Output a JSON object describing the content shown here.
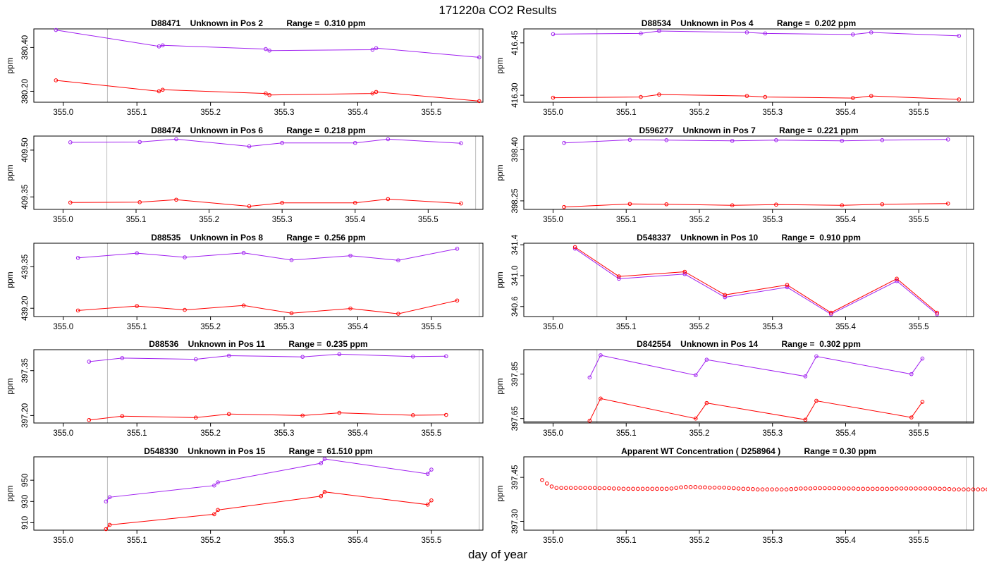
{
  "figure": {
    "title": "171220a  CO2 Results",
    "xlabel": "day of year"
  },
  "colors": {
    "purple": "#a020f0",
    "red": "#ff0000",
    "refline": "#bdbdbd"
  },
  "chart_data": [
    {
      "type": "line",
      "title": "D88471    Unknown in Pos 2          Range =  0.310 ppm",
      "ylabel": "ppm",
      "xlim": [
        354.96,
        355.57
      ],
      "ylim": [
        380.15,
        380.485
      ],
      "xticks": [
        355.0,
        355.1,
        355.2,
        355.3,
        355.4,
        355.5
      ],
      "xtick_labels": [
        "355.0",
        "355.1",
        "355.2",
        "355.3",
        "355.4",
        "355.5"
      ],
      "yticks": [
        380.2,
        380.4
      ],
      "ytick_labels": [
        "380.20",
        "380.40"
      ],
      "vlines": [
        355.06,
        355.565
      ],
      "series": [
        {
          "name": "upper",
          "color": "#a020f0",
          "x": [
            354.99,
            355.13,
            355.135,
            355.275,
            355.28,
            355.42,
            355.425,
            355.565
          ],
          "y": [
            380.48,
            380.405,
            380.41,
            380.393,
            380.386,
            380.39,
            380.397,
            380.355
          ]
        },
        {
          "name": "lower",
          "color": "#ff0000",
          "x": [
            354.99,
            355.13,
            355.135,
            355.275,
            355.28,
            355.42,
            355.425,
            355.565
          ],
          "y": [
            380.25,
            380.2,
            380.207,
            380.19,
            380.183,
            380.19,
            380.197,
            380.155
          ]
        }
      ]
    },
    {
      "type": "line",
      "title": "D88534    Unknown in Pos 4          Range =  0.202 ppm",
      "ylabel": "ppm",
      "xlim": [
        354.96,
        355.575
      ],
      "ylim": [
        416.28,
        416.49
      ],
      "xticks": [
        355.0,
        355.1,
        355.2,
        355.3,
        355.4,
        355.5
      ],
      "xtick_labels": [
        "355.0",
        "355.1",
        "355.2",
        "355.3",
        "355.4",
        "355.5"
      ],
      "yticks": [
        416.3,
        416.45
      ],
      "ytick_labels": [
        "416.30",
        "416.45"
      ],
      "vlines": [
        355.06,
        355.565
      ],
      "series": [
        {
          "name": "upper",
          "color": "#a020f0",
          "x": [
            355.0,
            355.12,
            355.145,
            355.265,
            355.29,
            355.41,
            355.435,
            355.555
          ],
          "y": [
            416.475,
            416.477,
            416.484,
            416.48,
            416.477,
            416.474,
            416.48,
            416.47
          ]
        },
        {
          "name": "lower",
          "color": "#ff0000",
          "x": [
            355.0,
            355.12,
            355.145,
            355.265,
            355.29,
            355.41,
            355.435,
            355.555
          ],
          "y": [
            416.293,
            416.295,
            416.302,
            416.298,
            416.295,
            416.292,
            416.298,
            416.288
          ]
        }
      ]
    },
    {
      "type": "line",
      "title": "D88474    Unknown in Pos 6          Range =  0.218 ppm",
      "ylabel": "ppm",
      "xlim": [
        354.96,
        355.575
      ],
      "ylim": [
        409.31,
        409.545
      ],
      "xticks": [
        355.0,
        355.1,
        355.2,
        355.3,
        355.4,
        355.5
      ],
      "xtick_labels": [
        "355.0",
        "355.1",
        "355.2",
        "355.3",
        "355.4",
        "355.5"
      ],
      "yticks": [
        409.35,
        409.5
      ],
      "ytick_labels": [
        "409.35",
        "409.50"
      ],
      "vlines": [
        355.06,
        355.565
      ],
      "series": [
        {
          "name": "upper",
          "color": "#a020f0",
          "x": [
            355.01,
            355.105,
            355.155,
            355.255,
            355.3,
            355.4,
            355.445,
            355.545
          ],
          "y": [
            409.525,
            409.526,
            409.535,
            409.512,
            409.523,
            409.523,
            409.535,
            409.522
          ]
        },
        {
          "name": "lower",
          "color": "#ff0000",
          "x": [
            355.01,
            355.105,
            355.155,
            355.255,
            355.3,
            355.4,
            355.445,
            355.545
          ],
          "y": [
            409.332,
            409.333,
            409.341,
            409.32,
            409.331,
            409.331,
            409.343,
            409.329
          ]
        }
      ]
    },
    {
      "type": "line",
      "title": "D596277    Unknown in Pos 7          Range =  0.221 ppm",
      "ylabel": "ppm",
      "xlim": [
        354.96,
        355.575
      ],
      "ylim": [
        398.225,
        398.44
      ],
      "xticks": [
        355.0,
        355.1,
        355.2,
        355.3,
        355.4,
        355.5
      ],
      "xtick_labels": [
        "355.0",
        "355.1",
        "355.2",
        "355.3",
        "355.4",
        "355.5"
      ],
      "yticks": [
        398.25,
        398.4
      ],
      "ytick_labels": [
        "398.25",
        "398.40"
      ],
      "vlines": [
        355.06,
        355.565
      ],
      "series": [
        {
          "name": "upper",
          "color": "#a020f0",
          "x": [
            355.015,
            355.105,
            355.155,
            355.245,
            355.305,
            355.395,
            355.45,
            355.54
          ],
          "y": [
            398.42,
            398.429,
            398.428,
            398.426,
            398.428,
            398.426,
            398.428,
            398.43
          ]
        },
        {
          "name": "lower",
          "color": "#ff0000",
          "x": [
            355.015,
            355.105,
            355.155,
            355.245,
            355.305,
            355.395,
            355.45,
            355.54
          ],
          "y": [
            398.232,
            398.241,
            398.24,
            398.237,
            398.239,
            398.237,
            398.24,
            398.242
          ]
        }
      ]
    },
    {
      "type": "line",
      "title": "D88535    Unknown in Pos 8          Range =  0.256 ppm",
      "ylabel": "ppm",
      "xlim": [
        354.96,
        355.57
      ],
      "ylim": [
        439.17,
        439.435
      ],
      "xticks": [
        355.0,
        355.1,
        355.2,
        355.3,
        355.4,
        355.5
      ],
      "xtick_labels": [
        "355.0",
        "355.1",
        "355.2",
        "355.3",
        "355.4",
        "355.5"
      ],
      "yticks": [
        439.2,
        439.35
      ],
      "ytick_labels": [
        "439.20",
        "439.35"
      ],
      "vlines": [
        355.06,
        355.565
      ],
      "series": [
        {
          "name": "upper",
          "color": "#a020f0",
          "x": [
            355.02,
            355.1,
            355.165,
            355.245,
            355.31,
            355.39,
            355.455,
            355.535
          ],
          "y": [
            439.382,
            439.399,
            439.384,
            439.4,
            439.374,
            439.39,
            439.373,
            439.415
          ]
        },
        {
          "name": "lower",
          "color": "#ff0000",
          "x": [
            355.02,
            355.1,
            355.165,
            355.245,
            355.31,
            355.39,
            355.455,
            355.535
          ],
          "y": [
            439.192,
            439.208,
            439.194,
            439.21,
            439.182,
            439.199,
            439.18,
            439.228
          ]
        }
      ]
    },
    {
      "type": "line",
      "title": "D548337    Unknown in Pos 10          Range =  0.910 ppm",
      "ylabel": "ppm",
      "xlim": [
        354.96,
        355.575
      ],
      "ylim": [
        340.47,
        341.42
      ],
      "xticks": [
        355.0,
        355.1,
        355.2,
        355.3,
        355.4,
        355.5
      ],
      "xtick_labels": [
        "355.0",
        "355.1",
        "355.2",
        "355.3",
        "355.4",
        "355.5"
      ],
      "yticks": [
        340.6,
        341.0,
        341.4
      ],
      "ytick_labels": [
        "340.6",
        "341.0",
        "341.4"
      ],
      "vlines": [
        355.06,
        355.565
      ],
      "series": [
        {
          "name": "upper",
          "color": "#a020f0",
          "x": [
            355.03,
            355.09,
            355.18,
            355.235,
            355.32,
            355.38,
            355.47,
            355.525
          ],
          "y": [
            341.35,
            340.96,
            341.02,
            340.72,
            340.85,
            340.5,
            340.93,
            340.5
          ]
        },
        {
          "name": "lower",
          "color": "#ff0000",
          "x": [
            355.03,
            355.09,
            355.18,
            355.235,
            355.32,
            355.38,
            355.47,
            355.525
          ],
          "y": [
            341.37,
            340.99,
            341.05,
            340.75,
            340.88,
            340.52,
            340.96,
            340.52
          ]
        }
      ]
    },
    {
      "type": "line",
      "title": "D88536    Unknown in Pos 11          Range =  0.235 ppm",
      "ylabel": "ppm",
      "xlim": [
        354.96,
        355.57
      ],
      "ylim": [
        397.175,
        397.42
      ],
      "xticks": [
        355.0,
        355.1,
        355.2,
        355.3,
        355.4,
        355.5
      ],
      "xtick_labels": [
        "355.0",
        "355.1",
        "355.2",
        "355.3",
        "355.4",
        "355.5"
      ],
      "yticks": [
        397.2,
        397.35
      ],
      "ytick_labels": [
        "397.20",
        "397.35"
      ],
      "vlines": [
        355.06,
        355.565
      ],
      "series": [
        {
          "name": "upper",
          "color": "#a020f0",
          "x": [
            355.035,
            355.08,
            355.18,
            355.225,
            355.325,
            355.375,
            355.475,
            355.52
          ],
          "y": [
            397.38,
            397.392,
            397.388,
            397.4,
            397.396,
            397.405,
            397.397,
            397.398
          ]
        },
        {
          "name": "lower",
          "color": "#ff0000",
          "x": [
            355.035,
            355.08,
            355.18,
            355.225,
            355.325,
            355.375,
            355.475,
            355.52
          ],
          "y": [
            397.185,
            397.198,
            397.193,
            397.205,
            397.2,
            397.209,
            397.201,
            397.202
          ]
        }
      ]
    },
    {
      "type": "line",
      "title": "D842554    Unknown in Pos 14          Range =  0.302 ppm",
      "ylabel": "ppm",
      "xlim": [
        354.96,
        355.575
      ],
      "ylim": [
        397.63,
        397.96
      ],
      "xticks": [
        355.0,
        355.1,
        355.2,
        355.3,
        355.4,
        355.5
      ],
      "xtick_labels": [
        "355.0",
        "355.1",
        "355.2",
        "355.3",
        "355.4",
        "355.5"
      ],
      "yticks": [
        397.65,
        397.85
      ],
      "ytick_labels": [
        "397.65",
        "397.85"
      ],
      "vlines": [
        355.06,
        355.565
      ],
      "hline": 397.635,
      "series": [
        {
          "name": "upper",
          "color": "#a020f0",
          "x": [
            355.05,
            355.065,
            355.195,
            355.21,
            355.345,
            355.36,
            355.49,
            355.505
          ],
          "y": [
            397.835,
            397.935,
            397.845,
            397.915,
            397.84,
            397.93,
            397.85,
            397.92
          ]
        },
        {
          "name": "lower",
          "color": "#ff0000",
          "x": [
            355.05,
            355.065,
            355.195,
            355.21,
            355.345,
            355.36,
            355.49,
            355.505
          ],
          "y": [
            397.64,
            397.74,
            397.65,
            397.72,
            397.645,
            397.73,
            397.655,
            397.725
          ]
        }
      ]
    },
    {
      "type": "line",
      "title": "D548330    Unknown in Pos 15          Range =  61.510 ppm",
      "ylabel": "ppm",
      "xlim": [
        354.96,
        355.57
      ],
      "ylim": [
        903,
        972
      ],
      "xticks": [
        355.0,
        355.1,
        355.2,
        355.3,
        355.4,
        355.5
      ],
      "xtick_labels": [
        "355.0",
        "355.1",
        "355.2",
        "355.3",
        "355.4",
        "355.5"
      ],
      "yticks": [
        910,
        930,
        950
      ],
      "ytick_labels": [
        "910",
        "930",
        "950"
      ],
      "vlines": [
        355.06,
        355.565
      ],
      "series": [
        {
          "name": "upper",
          "color": "#a020f0",
          "x": [
            355.058,
            355.063,
            355.205,
            355.21,
            355.35,
            355.355,
            355.495,
            355.5
          ],
          "y": [
            930,
            934,
            945,
            948,
            966,
            970,
            956,
            960
          ]
        },
        {
          "name": "lower",
          "color": "#ff0000",
          "x": [
            355.058,
            355.063,
            355.205,
            355.21,
            355.35,
            355.355,
            355.495,
            355.5
          ],
          "y": [
            904,
            908,
            918,
            922,
            935,
            939,
            927,
            931
          ]
        }
      ]
    },
    {
      "type": "scatter",
      "title": "Apparent WT Concentration ( D258964 )          Range = 0.30 ppm",
      "ylabel": "ppm",
      "xlim": [
        354.96,
        355.575
      ],
      "ylim": [
        397.27,
        397.52
      ],
      "xticks": [
        355.0,
        355.1,
        355.2,
        355.3,
        355.4,
        355.5
      ],
      "xtick_labels": [
        "355.0",
        "355.1",
        "355.2",
        "355.3",
        "355.4",
        "355.5"
      ],
      "yticks": [
        397.3,
        397.45
      ],
      "ytick_labels": [
        "397.30",
        "397.45"
      ],
      "vlines": [
        355.06,
        355.565
      ],
      "series": [
        {
          "name": "wt",
          "color": "#ff0000",
          "x_start": 354.985,
          "x_step": 0.00655,
          "y": [
            397.441,
            397.429,
            397.419,
            397.414,
            397.414,
            397.414,
            397.414,
            397.414,
            397.414,
            397.414,
            397.414,
            397.414,
            397.413,
            397.413,
            397.413,
            397.412,
            397.412,
            397.411,
            397.411,
            397.411,
            397.411,
            397.411,
            397.411,
            397.411,
            397.411,
            397.411,
            397.411,
            397.412,
            397.414,
            397.416,
            397.417,
            397.417,
            397.417,
            397.416,
            397.416,
            397.415,
            397.415,
            397.415,
            397.415,
            397.414,
            397.413,
            397.412,
            397.411,
            397.411,
            397.41,
            397.409,
            397.409,
            397.409,
            397.409,
            397.409,
            397.409,
            397.409,
            397.41,
            397.411,
            397.412,
            397.412,
            397.412,
            397.413,
            397.413,
            397.413,
            397.413,
            397.413,
            397.413,
            397.412,
            397.412,
            397.412,
            397.411,
            397.411,
            397.411,
            397.411,
            397.411,
            397.411,
            397.411,
            397.411,
            397.412,
            397.412,
            397.412,
            397.412,
            397.412,
            397.412,
            397.412,
            397.412,
            397.412,
            397.411,
            397.411,
            397.41,
            397.409,
            397.409,
            397.409,
            397.409,
            397.409,
            397.409,
            397.409,
            397.409,
            397.409
          ]
        }
      ]
    }
  ]
}
